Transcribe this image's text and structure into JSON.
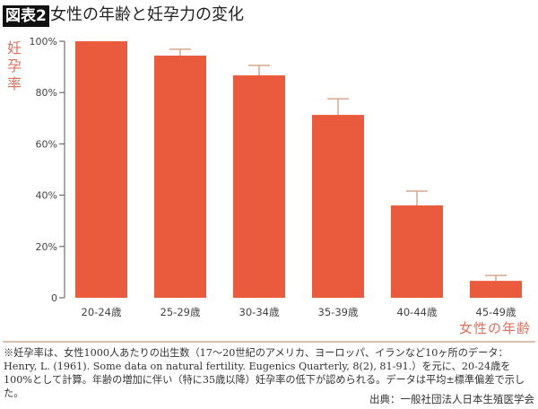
{
  "header": {
    "badge": "図表2",
    "title": "女性の年齢と妊孕力の変化"
  },
  "colors": {
    "bar": "#ea5a3d",
    "error_bar": "#d6a88c",
    "axis": "#555555",
    "label_accent": "#e0705c"
  },
  "chart_data": {
    "type": "bar",
    "title": "女性の年齢と妊孕力の変化",
    "ylabel": "妊孕率",
    "xlabel": "女性の年齢",
    "categories": [
      "20-24歳",
      "25-29歳",
      "30-34歳",
      "35-39歳",
      "40-44歳",
      "45-49歳"
    ],
    "values": [
      100,
      94.4,
      86.7,
      71.3,
      36,
      6.6
    ],
    "error_upper": [
      null,
      96.9,
      90.6,
      77.6,
      41.6,
      8.7
    ],
    "ylim": [
      0,
      100
    ],
    "yticks": [
      0,
      20,
      40,
      60,
      80,
      100
    ],
    "ytick_labels": [
      "0",
      "20%",
      "40%",
      "60%",
      "80%",
      "100%"
    ],
    "grid": false,
    "legend": "none"
  },
  "footer": {
    "note": "※妊孕率は、女性1000人あたりの出生数（17〜20世紀のアメリカ、ヨーロッパ、イランなど10ヶ所のデータ：Henry, L. (1961). Some data on natural fertility. Eugenics Quarterly, 8(2), 81-91.）を元に、20-24歳を100%として計算。年齢の増加に伴い（特に35歳以降）妊孕率の低下が認められる。データは平均±標準偏差で示した。",
    "source": "出典：一般社団法人日本生殖医学会"
  }
}
